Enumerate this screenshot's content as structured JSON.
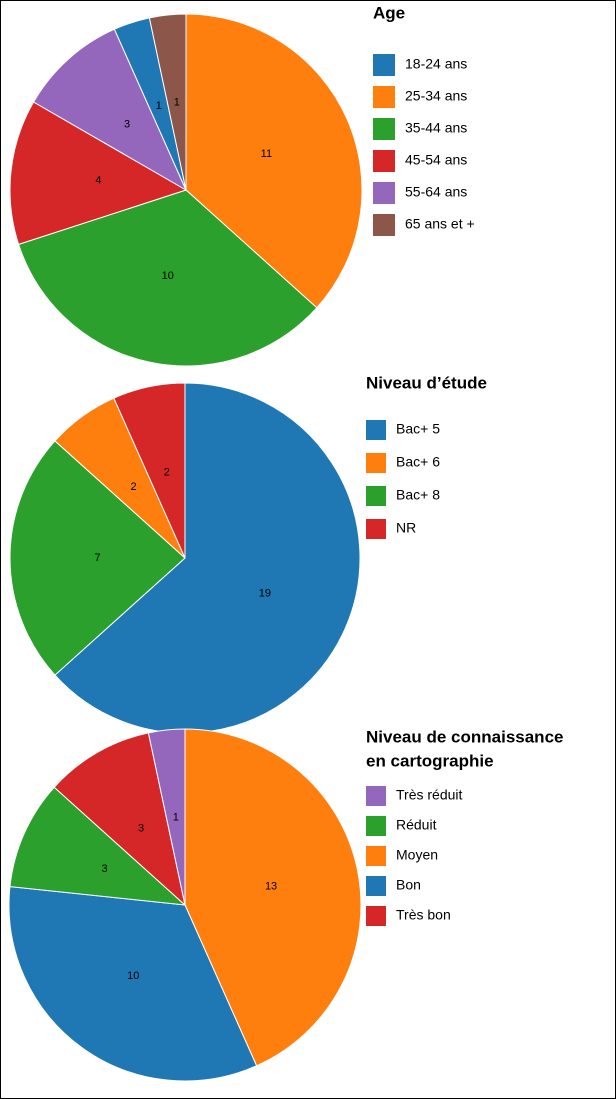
{
  "chart_data": [
    {
      "type": "pie",
      "title": "Age",
      "categories": [
        "18-24 ans",
        "25-34 ans",
        "35-44 ans",
        "45-54 ans",
        "55-64 ans",
        "65 ans et +"
      ],
      "values": [
        1,
        11,
        10,
        4,
        3,
        1
      ],
      "colors": [
        "#1f77b4",
        "#ff7f0e",
        "#2ca02c",
        "#d62728",
        "#9467bd",
        "#8c564b"
      ],
      "sort": "descending"
    },
    {
      "type": "pie",
      "title": "Niveau d’étude",
      "categories": [
        "Bac+ 5",
        "Bac+ 6",
        "Bac+ 8",
        "NR"
      ],
      "values": [
        19,
        2,
        7,
        2
      ],
      "colors": [
        "#1f77b4",
        "#ff7f0e",
        "#2ca02c",
        "#d62728"
      ],
      "sort": "descending"
    },
    {
      "type": "pie",
      "title": [
        "Niveau de connaissance",
        "en cartographie"
      ],
      "categories": [
        "Très réduit",
        "Réduit",
        "Moyen",
        "Bon",
        "Très bon"
      ],
      "values": [
        1,
        3,
        13,
        10,
        3
      ],
      "colors": [
        "#9467bd",
        "#2ca02c",
        "#ff7f0e",
        "#1f77b4",
        "#d62728"
      ],
      "sort": "descending"
    }
  ]
}
